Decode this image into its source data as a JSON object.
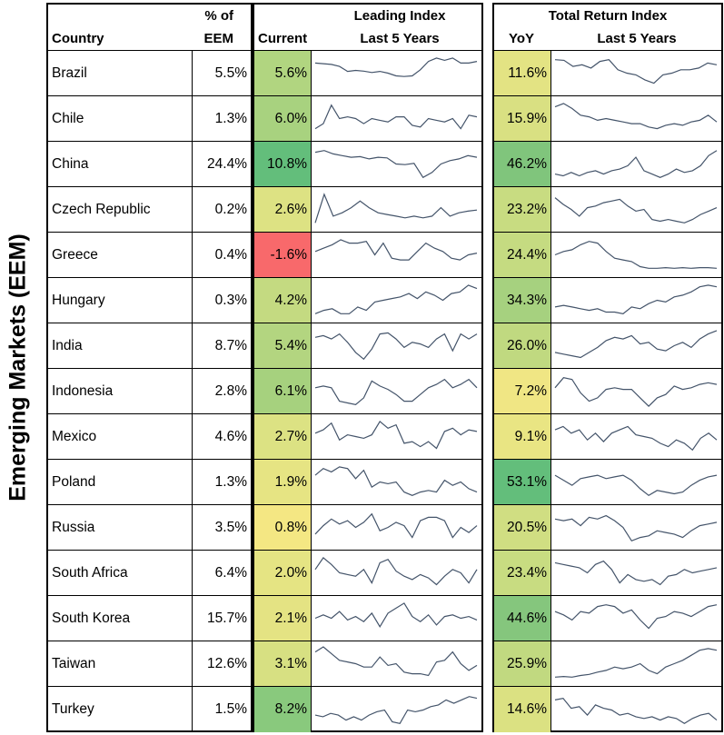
{
  "side_label": "Emerging Markets (EEM)",
  "headers": {
    "country": "Country",
    "pct_top": "% of",
    "pct_bottom": "EEM",
    "leading_title": "Leading Index",
    "current": "Current",
    "last5": "Last 5 Years",
    "tr_title": "Total Return Index",
    "yoy": "YoY",
    "last5_tr": "Last 5 Years"
  },
  "line_color": "#44546a",
  "rows": [
    {
      "country": "Brazil",
      "pct": "5.5%",
      "current": "5.6%",
      "current_color": "#b1d580",
      "yoy": "11.6%",
      "yoy_color": "#e3e383",
      "leading": [
        80,
        78,
        76,
        70,
        55,
        58,
        56,
        52,
        55,
        50,
        42,
        40,
        42,
        60,
        85,
        95,
        88,
        95,
        80,
        80,
        85
      ],
      "tr": [
        90,
        88,
        70,
        75,
        65,
        85,
        90,
        60,
        50,
        45,
        30,
        20,
        45,
        50,
        60,
        60,
        65,
        80,
        75
      ]
    },
    {
      "country": "Chile",
      "pct": "1.3%",
      "current": "6.0%",
      "current_color": "#a8d27f",
      "yoy": "15.9%",
      "yoy_color": "#d9e082",
      "leading": [
        20,
        35,
        90,
        50,
        55,
        50,
        35,
        50,
        45,
        40,
        55,
        55,
        30,
        25,
        50,
        45,
        40,
        50,
        20,
        60,
        55
      ],
      "tr": [
        85,
        95,
        80,
        60,
        55,
        45,
        50,
        45,
        40,
        35,
        35,
        25,
        20,
        30,
        35,
        30,
        40,
        45,
        60,
        40
      ]
    },
    {
      "country": "China",
      "pct": "24.4%",
      "current": "10.8%",
      "current_color": "#63be7b",
      "yoy": "46.2%",
      "yoy_color": "#80c57c",
      "leading": [
        85,
        90,
        80,
        75,
        70,
        72,
        65,
        70,
        68,
        50,
        48,
        52,
        10,
        25,
        50,
        60,
        65,
        75,
        70
      ],
      "tr": [
        20,
        15,
        25,
        15,
        25,
        30,
        20,
        30,
        35,
        45,
        70,
        30,
        20,
        10,
        20,
        35,
        25,
        30,
        45,
        75,
        90
      ]
    },
    {
      "country": "Czech Republic",
      "pct": "0.2%",
      "current": "2.6%",
      "current_color": "#dde283",
      "yoy": "23.2%",
      "yoy_color": "#c8dc81",
      "leading": [
        10,
        95,
        30,
        40,
        55,
        75,
        55,
        40,
        35,
        30,
        25,
        30,
        25,
        30,
        55,
        30,
        40,
        45,
        48
      ],
      "tr": [
        85,
        65,
        50,
        30,
        55,
        60,
        70,
        75,
        80,
        60,
        45,
        50,
        20,
        15,
        20,
        15,
        10,
        20,
        35,
        45,
        55
      ]
    },
    {
      "country": "Greece",
      "pct": "0.4%",
      "current": "-1.6%",
      "current_color": "#f8696b",
      "yoy": "24.4%",
      "yoy_color": "#c5db81",
      "leading": [
        60,
        70,
        80,
        95,
        85,
        85,
        90,
        50,
        85,
        40,
        35,
        35,
        60,
        85,
        70,
        60,
        40,
        35,
        50,
        55
      ],
      "tr": [
        50,
        60,
        65,
        80,
        90,
        85,
        60,
        40,
        35,
        30,
        15,
        10,
        10,
        12,
        10,
        12,
        10,
        12,
        12,
        10
      ]
    },
    {
      "country": "Hungary",
      "pct": "0.3%",
      "current": "4.2%",
      "current_color": "#c4da81",
      "yoy": "34.3%",
      "yoy_color": "#a6d17f",
      "leading": [
        10,
        20,
        25,
        10,
        10,
        30,
        20,
        45,
        50,
        55,
        60,
        70,
        55,
        75,
        65,
        50,
        70,
        75,
        95,
        85
      ],
      "tr": [
        30,
        35,
        30,
        25,
        20,
        25,
        15,
        15,
        10,
        30,
        25,
        40,
        50,
        45,
        60,
        65,
        75,
        90,
        95,
        90
      ]
    },
    {
      "country": "India",
      "pct": "8.7%",
      "current": "5.4%",
      "current_color": "#b3d580",
      "yoy": "26.0%",
      "yoy_color": "#c0d980",
      "leading": [
        75,
        80,
        70,
        85,
        60,
        30,
        10,
        40,
        85,
        88,
        70,
        45,
        60,
        55,
        45,
        70,
        85,
        35,
        85,
        70,
        85
      ],
      "tr": [
        30,
        25,
        20,
        15,
        30,
        45,
        65,
        75,
        70,
        80,
        55,
        60,
        40,
        35,
        50,
        60,
        45,
        70,
        85,
        95
      ]
    },
    {
      "country": "Indonesia",
      "pct": "2.8%",
      "current": "6.1%",
      "current_color": "#a6d17e",
      "yoy": "7.2%",
      "yoy_color": "#f0e684",
      "leading": [
        60,
        65,
        60,
        20,
        15,
        10,
        30,
        80,
        65,
        55,
        40,
        20,
        20,
        40,
        60,
        70,
        85,
        60,
        70,
        85,
        60
      ],
      "tr": [
        60,
        90,
        85,
        45,
        20,
        30,
        55,
        60,
        55,
        55,
        30,
        5,
        30,
        40,
        65,
        55,
        60,
        70,
        75,
        70
      ]
    },
    {
      "country": "Mexico",
      "pct": "4.6%",
      "current": "2.7%",
      "current_color": "#dce283",
      "yoy": "9.1%",
      "yoy_color": "#e9e583",
      "leading": [
        60,
        70,
        90,
        40,
        55,
        50,
        45,
        55,
        95,
        75,
        85,
        30,
        35,
        20,
        35,
        15,
        65,
        75,
        55,
        70,
        65
      ],
      "tr": [
        70,
        80,
        60,
        70,
        40,
        60,
        35,
        60,
        70,
        80,
        55,
        50,
        45,
        30,
        20,
        40,
        30,
        10,
        45,
        60,
        40
      ]
    },
    {
      "country": "Poland",
      "pct": "1.3%",
      "current": "1.9%",
      "current_color": "#e6e483",
      "yoy": "53.1%",
      "yoy_color": "#63be7b",
      "leading": [
        70,
        90,
        80,
        95,
        90,
        60,
        85,
        35,
        50,
        45,
        50,
        20,
        10,
        20,
        25,
        20,
        55,
        40,
        50,
        30,
        20
      ],
      "tr": [
        70,
        55,
        40,
        60,
        65,
        70,
        60,
        65,
        70,
        55,
        30,
        10,
        25,
        20,
        15,
        20,
        40,
        55,
        65,
        70
      ]
    },
    {
      "country": "Russia",
      "pct": "3.5%",
      "current": "0.8%",
      "current_color": "#f4e783",
      "yoy": "20.5%",
      "yoy_color": "#d0de82",
      "leading": [
        30,
        55,
        75,
        60,
        70,
        50,
        65,
        90,
        40,
        50,
        65,
        55,
        20,
        70,
        80,
        80,
        70,
        20,
        50,
        35,
        55
      ],
      "tr": [
        75,
        70,
        75,
        55,
        80,
        75,
        85,
        70,
        50,
        10,
        20,
        25,
        40,
        35,
        30,
        20,
        40,
        55,
        60,
        65
      ]
    },
    {
      "country": "South Africa",
      "pct": "6.4%",
      "current": "2.0%",
      "current_color": "#e5e483",
      "yoy": "23.4%",
      "yoy_color": "#c8dc81",
      "leading": [
        60,
        95,
        75,
        50,
        45,
        40,
        60,
        20,
        80,
        90,
        55,
        40,
        30,
        45,
        35,
        15,
        40,
        60,
        50,
        20,
        60
      ],
      "tr": [
        80,
        75,
        70,
        65,
        50,
        75,
        85,
        60,
        20,
        45,
        30,
        25,
        30,
        15,
        40,
        45,
        60,
        50,
        55,
        60,
        65
      ]
    },
    {
      "country": "South Korea",
      "pct": "15.7%",
      "current": "2.1%",
      "current_color": "#e4e383",
      "yoy": "44.6%",
      "yoy_color": "#85c67d",
      "leading": [
        50,
        60,
        50,
        70,
        45,
        55,
        40,
        65,
        25,
        65,
        80,
        95,
        55,
        40,
        60,
        30,
        55,
        60,
        50,
        55,
        45
      ],
      "tr": [
        70,
        60,
        45,
        70,
        65,
        85,
        90,
        85,
        65,
        75,
        45,
        20,
        50,
        55,
        70,
        65,
        55,
        70,
        85,
        90
      ]
    },
    {
      "country": "Taiwan",
      "pct": "12.6%",
      "current": "3.1%",
      "current_color": "#d7e082",
      "yoy": "25.9%",
      "yoy_color": "#c1d980",
      "leading": [
        85,
        100,
        80,
        60,
        55,
        50,
        40,
        40,
        70,
        45,
        50,
        25,
        20,
        20,
        15,
        55,
        60,
        85,
        50,
        30,
        45
      ],
      "tr": [
        10,
        12,
        10,
        15,
        18,
        25,
        30,
        40,
        35,
        40,
        50,
        30,
        20,
        40,
        50,
        60,
        75,
        90,
        95,
        90
      ]
    },
    {
      "country": "Turkey",
      "pct": "1.5%",
      "current": "8.2%",
      "current_color": "#89c97d",
      "yoy": "14.6%",
      "yoy_color": "#dbe182",
      "leading": [
        35,
        30,
        40,
        35,
        20,
        30,
        20,
        35,
        45,
        50,
        15,
        10,
        50,
        45,
        50,
        60,
        65,
        80,
        70,
        80,
        90,
        85
      ],
      "tr": [
        80,
        85,
        55,
        60,
        35,
        65,
        55,
        50,
        35,
        40,
        30,
        25,
        30,
        20,
        30,
        25,
        10,
        25,
        35,
        40,
        20
      ]
    }
  ]
}
